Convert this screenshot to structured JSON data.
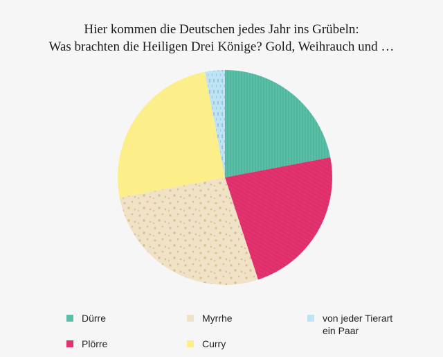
{
  "title_lines": [
    "Hier kommen die Deutschen jedes Jahr ins Grübeln:",
    "Was brachten die Heiligen Drei Könige? Gold, Weihrauch und …"
  ],
  "chart_data": {
    "type": "pie",
    "title": "Hier kommen die Deutschen jedes Jahr ins Grübeln: Was brachten die Heiligen Drei Könige? Gold, Weihrauch und …",
    "slices": [
      {
        "label": "Dürre",
        "value": 22,
        "color": "#5bbfa8",
        "pattern": "vertical-lines"
      },
      {
        "label": "Plörre",
        "value": 23,
        "color": "#e2336f",
        "pattern": "hatch"
      },
      {
        "label": "Myrrhe",
        "value": 27,
        "color": "#f0e2c6",
        "pattern": "dots"
      },
      {
        "label": "Curry",
        "value": 25,
        "color": "#fcef8a",
        "pattern": "solid"
      },
      {
        "label": "von jeder Tierart\nein Paar",
        "value": 3,
        "color": "#bfe3f2",
        "pattern": "dashes"
      }
    ],
    "start_angle_deg": 0,
    "direction": "clockwise",
    "legend_position": "bottom"
  }
}
